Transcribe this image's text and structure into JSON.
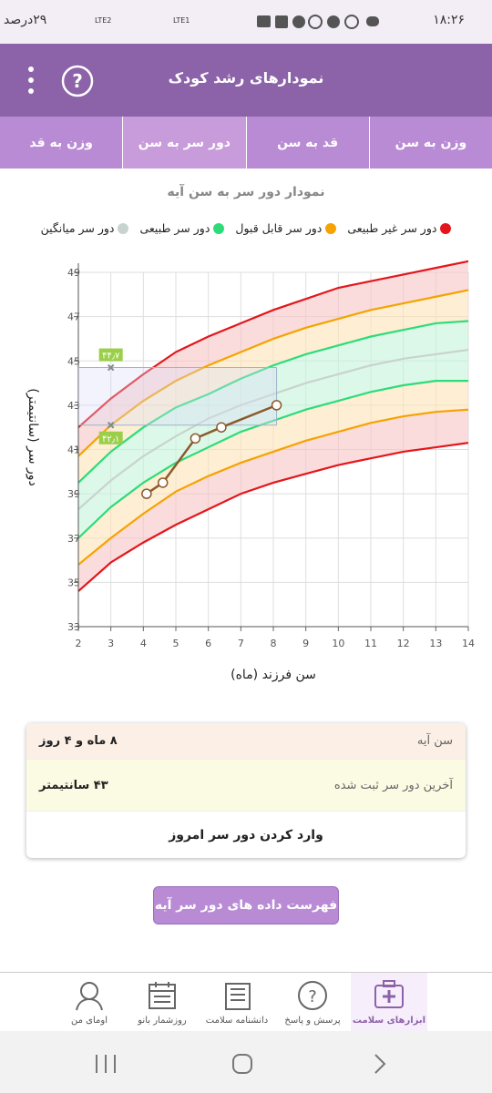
{
  "status_bar": {
    "time": "۱۸:۲۶",
    "battery": "۲۹درصد",
    "network_1": "LTE2",
    "network_2": "LTE1"
  },
  "app_bar": {
    "title": "نمودارهای رشد کودک"
  },
  "tabs": [
    "وزن به سن",
    "قد به سن",
    "دور سر به سن",
    "وزن به قد"
  ],
  "chart_data": {
    "type": "line",
    "title": "نمودار دور سر به سن آیه",
    "x_label": "سن فرزند (ماه)",
    "y_label": "دور سر (سانتیمتر)",
    "x": [
      2,
      3,
      4,
      5,
      6,
      7,
      8,
      9,
      10,
      11,
      12,
      13,
      14
    ],
    "xlim": [
      2,
      14
    ],
    "xticks": [
      2,
      3,
      4,
      5,
      6,
      7,
      8,
      9,
      10,
      11,
      12,
      13,
      14
    ],
    "ylim": [
      33,
      49
    ],
    "yticks": [
      33,
      35,
      37,
      39,
      41,
      43,
      45,
      47,
      49
    ],
    "grid": true,
    "series": [
      {
        "name": "دور سر غیر طبیعی",
        "color": "#e3161c",
        "fill": "#f9c4c4",
        "upper": [
          42.0,
          43.3,
          44.4,
          45.4,
          46.1,
          46.7,
          47.3,
          47.8,
          48.3,
          48.6,
          48.9,
          49.2,
          49.5
        ],
        "lower": [
          34.6,
          35.9,
          36.8,
          37.6,
          38.3,
          39.0,
          39.5,
          39.9,
          40.3,
          40.6,
          40.9,
          41.1,
          41.3
        ]
      },
      {
        "name": "دور سر قابل قبول",
        "color": "#f5a300",
        "fill": "#fde3b8",
        "upper": [
          40.7,
          42.1,
          43.2,
          44.1,
          44.8,
          45.4,
          46.0,
          46.5,
          46.9,
          47.3,
          47.6,
          47.9,
          48.2
        ],
        "lower": [
          35.8,
          37.0,
          38.1,
          39.1,
          39.8,
          40.4,
          40.9,
          41.4,
          41.8,
          42.2,
          42.5,
          42.7,
          42.8
        ]
      },
      {
        "name": "دور سر طبیعی",
        "color": "#2ddc78",
        "fill": "#c4f3da",
        "upper": [
          39.5,
          40.9,
          42.0,
          42.9,
          43.5,
          44.2,
          44.8,
          45.3,
          45.7,
          46.1,
          46.4,
          46.7,
          46.8
        ],
        "lower": [
          37.0,
          38.4,
          39.5,
          40.4,
          41.1,
          41.8,
          42.3,
          42.8,
          43.2,
          43.6,
          43.9,
          44.1,
          44.1
        ]
      },
      {
        "name": "دور سر میانگین",
        "color": "#c9d3ce",
        "values": [
          38.3,
          39.6,
          40.7,
          41.6,
          42.4,
          43.0,
          43.5,
          44.0,
          44.4,
          44.8,
          45.1,
          45.3,
          45.5
        ]
      }
    ],
    "measurements": {
      "color": "#8b5a2b",
      "x": [
        4.1,
        4.6,
        5.6,
        6.4,
        8.1
      ],
      "values": [
        39.0,
        39.5,
        41.5,
        42.0,
        43.0
      ]
    },
    "annotations": [
      {
        "x": 3,
        "value": 44.7,
        "label": "۴۴٫۷"
      },
      {
        "x": 3,
        "value": 42.1,
        "label": "۴۲٫۱"
      }
    ]
  },
  "info_card": {
    "rows": [
      {
        "label": "سن آیه",
        "value": "۸ ماه و ۴ روز"
      },
      {
        "label": "آخرین دور سر ثبت شده",
        "value": "۴۳ سانتیمتر"
      }
    ],
    "action": "وارد کردن دور سر امروز"
  },
  "list_button": "فهرست داده های دور سر آیه",
  "bottom_nav": [
    "ابزارهای سلامت",
    "پرسش و پاسخ",
    "دانشنامه سلامت",
    "روزشمار بانو",
    "اومای من"
  ]
}
